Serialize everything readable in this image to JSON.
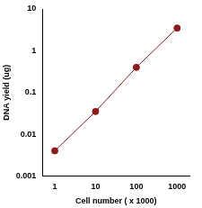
{
  "chart_data": {
    "type": "line",
    "x": [
      1,
      10,
      100,
      1000
    ],
    "values": [
      0.004,
      0.035,
      0.4,
      3.5
    ],
    "color": "#8b1a1a",
    "marker": "circle",
    "xlim": [
      0.5,
      2000
    ],
    "ylim": [
      0.001,
      10
    ],
    "xticks": [
      1,
      10,
      100,
      1000
    ],
    "yticks": [
      0.001,
      0.01,
      0.1,
      1,
      10
    ],
    "log": true,
    "grid": false,
    "xlabel": "Cell number ( x 1000)",
    "ylabel": "DNA yield (ug)"
  }
}
